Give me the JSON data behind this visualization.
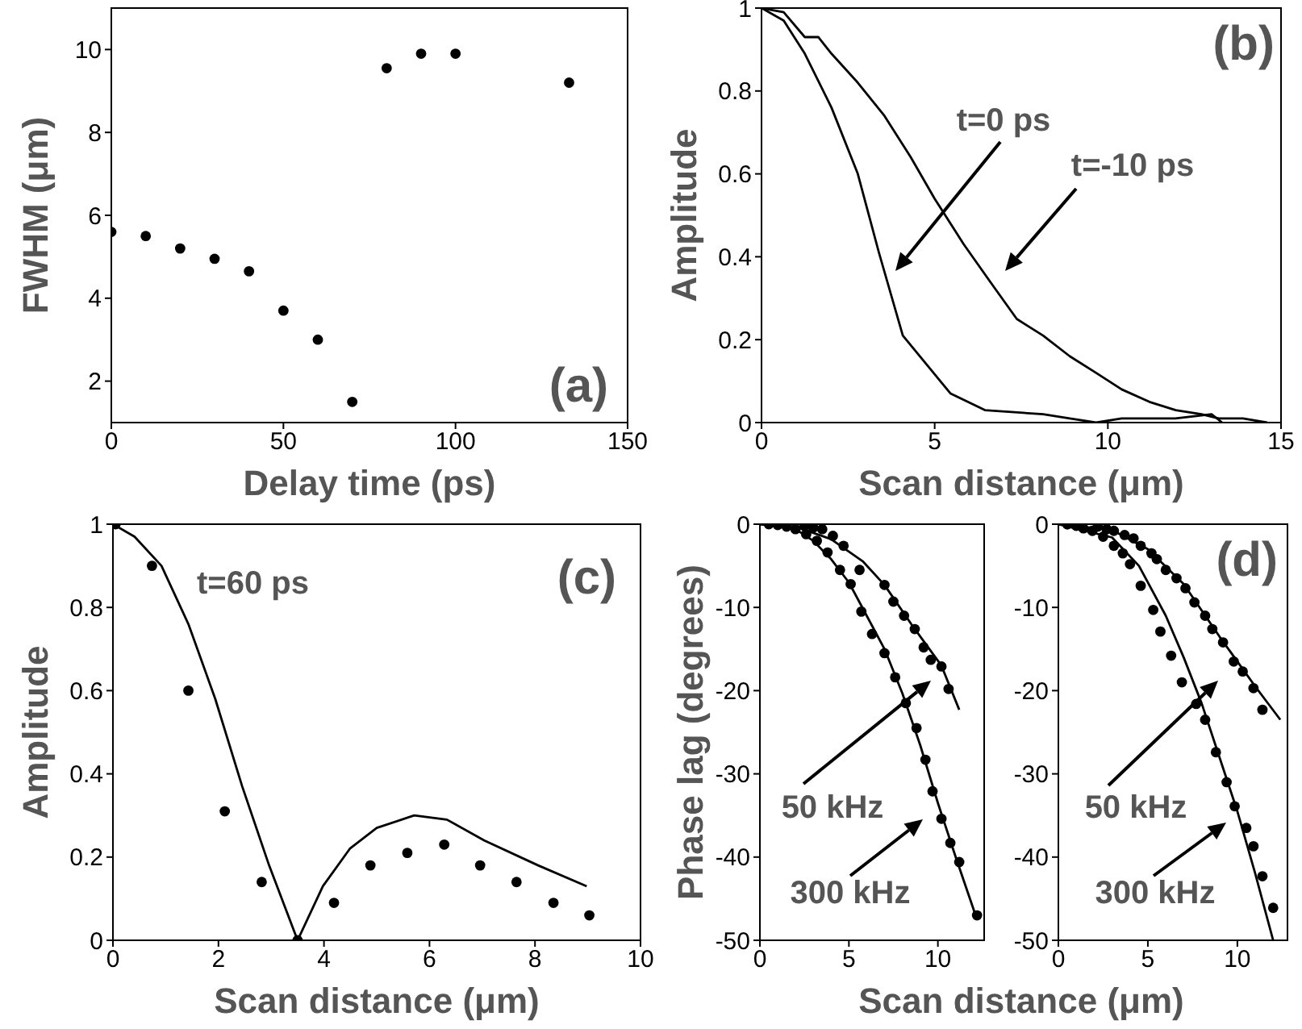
{
  "chart_data": [
    {
      "type": "scatter",
      "xlabel": "Delay time (ps)",
      "ylabel": "FWHM (μm)",
      "marker": "circle",
      "color": "#000000",
      "x": [
        0,
        10,
        20,
        30,
        40,
        50,
        60,
        70,
        80,
        90,
        100,
        133
      ],
      "values": [
        5.6,
        5.5,
        5.2,
        4.95,
        4.65,
        3.7,
        3.0,
        1.5,
        9.55,
        9.9,
        9.9,
        9.2
      ],
      "xlim": [
        0,
        150
      ],
      "xticks": [
        0,
        50,
        100,
        150
      ],
      "ylim": [
        1,
        11
      ],
      "yticks": [
        2,
        4,
        6,
        8,
        10
      ],
      "annotations": [
        "(a)"
      ]
    },
    {
      "type": "line",
      "xlabel": "Scan distance (μm)",
      "ylabel": "Amplitude",
      "series": [
        {
          "color": "#000000",
          "x": [
            0,
            0.64,
            1.25,
            2.02,
            2.78,
            3.39,
            4.08,
            4.77,
            5.46,
            6.45,
            8.13,
            8.9,
            9.66,
            10.4,
            11.95,
            13.0,
            13.3
          ],
          "values": [
            1,
            0.97,
            0.89,
            0.76,
            0.6,
            0.41,
            0.21,
            0.14,
            0.07,
            0.03,
            0.02,
            0.01,
            0,
            0.01,
            0.01,
            0.02,
            0
          ]
        },
        {
          "color": "#000000",
          "x": [
            0,
            0.64,
            1.25,
            1.64,
            2.02,
            2.78,
            3.55,
            4.31,
            5.0,
            5.84,
            6.6,
            7.37,
            8.13,
            8.9,
            9.66,
            10.4,
            11.2,
            11.96,
            12.7,
            13.2,
            13.9,
            14.6
          ],
          "values": [
            1,
            0.99,
            0.93,
            0.93,
            0.89,
            0.82,
            0.74,
            0.64,
            0.54,
            0.43,
            0.34,
            0.25,
            0.21,
            0.16,
            0.12,
            0.08,
            0.05,
            0.03,
            0.02,
            0.01,
            0.01,
            0
          ]
        }
      ],
      "xlim": [
        0,
        15
      ],
      "xticks": [
        0,
        5,
        10,
        15
      ],
      "ylim": [
        0,
        1
      ],
      "yticks": [
        0,
        0.2,
        0.4,
        0.6,
        0.8,
        1
      ],
      "annotations": [
        "(b)",
        "t=0 ps",
        "t=-10 ps"
      ]
    },
    {
      "type": "line",
      "xlabel": "Scan distance (μm)",
      "ylabel": "Amplitude",
      "series": [
        {
          "color": "#000000",
          "x": [
            0,
            0.41,
            0.92,
            1.43,
            1.94,
            2.45,
            2.96,
            3.5,
            3.98,
            4.49,
            5.0,
            5.71,
            6.33,
            7.04,
            8.06,
            8.98
          ],
          "values": [
            1,
            0.97,
            0.9,
            0.76,
            0.58,
            0.37,
            0.18,
            0,
            0.13,
            0.22,
            0.27,
            0.3,
            0.29,
            0.24,
            0.18,
            0.13
          ]
        },
        {
          "type": "scatter",
          "marker": "circle",
          "color": "#000000",
          "x": [
            0.05,
            0.74,
            1.43,
            2.12,
            2.82,
            3.5,
            4.19,
            4.88,
            5.58,
            6.28,
            6.96,
            7.65,
            8.35,
            9.03
          ],
          "values": [
            1,
            0.9,
            0.6,
            0.31,
            0.14,
            0,
            0.09,
            0.18,
            0.21,
            0.23,
            0.18,
            0.14,
            0.09,
            0.06
          ]
        }
      ],
      "xlim": [
        0,
        10
      ],
      "xticks": [
        0,
        2,
        4,
        6,
        8,
        10
      ],
      "ylim": [
        0,
        1
      ],
      "yticks": [
        0,
        0.2,
        0.4,
        0.6,
        0.8,
        1
      ],
      "annotations": [
        "(c)",
        "t=60 ps"
      ]
    },
    {
      "type": "line",
      "xlabel": "Scan distance (μm)",
      "ylabel": "Phase lag (degrees)",
      "series": [
        {
          "color": "#000000",
          "x": [
            0,
            2,
            4,
            5.8,
            7,
            8.6,
            10.2,
            11.2
          ],
          "values": [
            0,
            -0.3,
            -1.8,
            -4.5,
            -7.3,
            -12.3,
            -17,
            -22.3
          ]
        },
        {
          "type": "scatter",
          "marker": "circle",
          "color": "#000000",
          "x": [
            2.5,
            3,
            3.5,
            4.1,
            4.7,
            5.6,
            7.0,
            7.5,
            8.1,
            8.7,
            9.2,
            9.6,
            10.2,
            10.6
          ],
          "values": [
            -0.2,
            -0.4,
            -0.6,
            -1.4,
            -2.6,
            -5.5,
            -7.3,
            -9.3,
            -11,
            -12.6,
            -14.8,
            -16.3,
            -17.1,
            -19.8
          ]
        },
        {
          "color": "#000000",
          "x": [
            0,
            2,
            3,
            4,
            5,
            6,
            7,
            8,
            9,
            10,
            11,
            12.2
          ],
          "values": [
            0,
            -0.6,
            -2,
            -4.2,
            -7,
            -11,
            -15,
            -20.3,
            -26.5,
            -33.5,
            -40,
            -47.5
          ]
        },
        {
          "type": "scatter",
          "marker": "circle",
          "color": "#000000",
          "x": [
            0.5,
            1.0,
            1.5,
            2.0,
            2.6,
            3.2,
            3.8,
            4.5,
            5.1,
            5.7,
            6.3,
            7.0,
            7.6,
            8.2,
            8.8,
            9.3,
            9.7,
            10.2,
            10.7,
            11.2,
            12.2
          ],
          "values": [
            0,
            -0.1,
            -0.3,
            -0.6,
            -1.2,
            -2.0,
            -3.4,
            -5.5,
            -7.2,
            -10.5,
            -13.2,
            -15.5,
            -18.4,
            -21.5,
            -24.5,
            -28.3,
            -32.1,
            -35.4,
            -38.3,
            -40.6,
            -47
          ]
        }
      ],
      "xlim": [
        0,
        12.6
      ],
      "xticks": [
        0,
        5,
        10
      ],
      "ylim": [
        -50,
        0
      ],
      "yticks": [
        0,
        -10,
        -20,
        -30,
        -40,
        -50
      ],
      "annotations": [
        "50 kHz",
        "300 kHz"
      ]
    },
    {
      "type": "line",
      "series": [
        {
          "color": "#000000",
          "x": [
            0,
            3,
            5,
            7,
            9,
            11,
            12.4
          ],
          "values": [
            0,
            -0.7,
            -3,
            -7.2,
            -13.5,
            -19.5,
            -23.5
          ]
        },
        {
          "type": "scatter",
          "marker": "circle",
          "color": "#000000",
          "x": [
            0.5,
            1.6,
            2.2,
            2.7,
            3.1,
            3.7,
            4.2,
            4.6,
            5.2,
            5.5,
            6.0,
            6.6,
            7.1,
            7.6,
            8.2,
            8.6,
            9.2,
            9.8,
            10.3,
            10.9,
            11.4
          ],
          "values": [
            0,
            null,
            -0.3,
            -0.6,
            -0.8,
            -1.3,
            -1.7,
            -2.6,
            -3.5,
            -4.2,
            -5.5,
            -6.5,
            -7.7,
            -9.4,
            -11,
            -12.6,
            -14.2,
            -16.5,
            -17.7,
            -19.7,
            -22.3
          ]
        },
        {
          "color": "#000000",
          "x": [
            0,
            3,
            4.5,
            6,
            7,
            8,
            9,
            10,
            11,
            12
          ],
          "values": [
            0,
            -1.6,
            -5,
            -11,
            -16,
            -21.5,
            -28,
            -34.5,
            -42,
            -50
          ]
        },
        {
          "type": "scatter",
          "marker": "circle",
          "color": "#000000",
          "x": [
            0.5,
            1.0,
            1.4,
            1.9,
            2.5,
            3.1,
            3.6,
            4.0,
            4.6,
            5.3,
            5.7,
            6.3,
            6.9,
            7.7,
            8.2,
            8.8,
            9.4,
            9.85,
            10.5,
            10.9,
            11.4,
            12.0
          ],
          "values": [
            0,
            -0.2,
            -0.5,
            -0.8,
            -1.5,
            -2.6,
            -3.5,
            -4.8,
            -7.4,
            -10.3,
            -12.9,
            -15.8,
            -19,
            -21.6,
            -23.5,
            -27.4,
            -31,
            -33.9,
            -36.5,
            -38.7,
            -42.3,
            -46.1
          ]
        }
      ],
      "xlim": [
        0,
        12.8
      ],
      "xticks": [
        0,
        5,
        10
      ],
      "ylim": [
        -50,
        0
      ],
      "yticks": [
        0,
        -10,
        -20,
        -30,
        -40,
        -50
      ],
      "annotations": [
        "(d)",
        "50 kHz",
        "300 kHz"
      ]
    }
  ]
}
